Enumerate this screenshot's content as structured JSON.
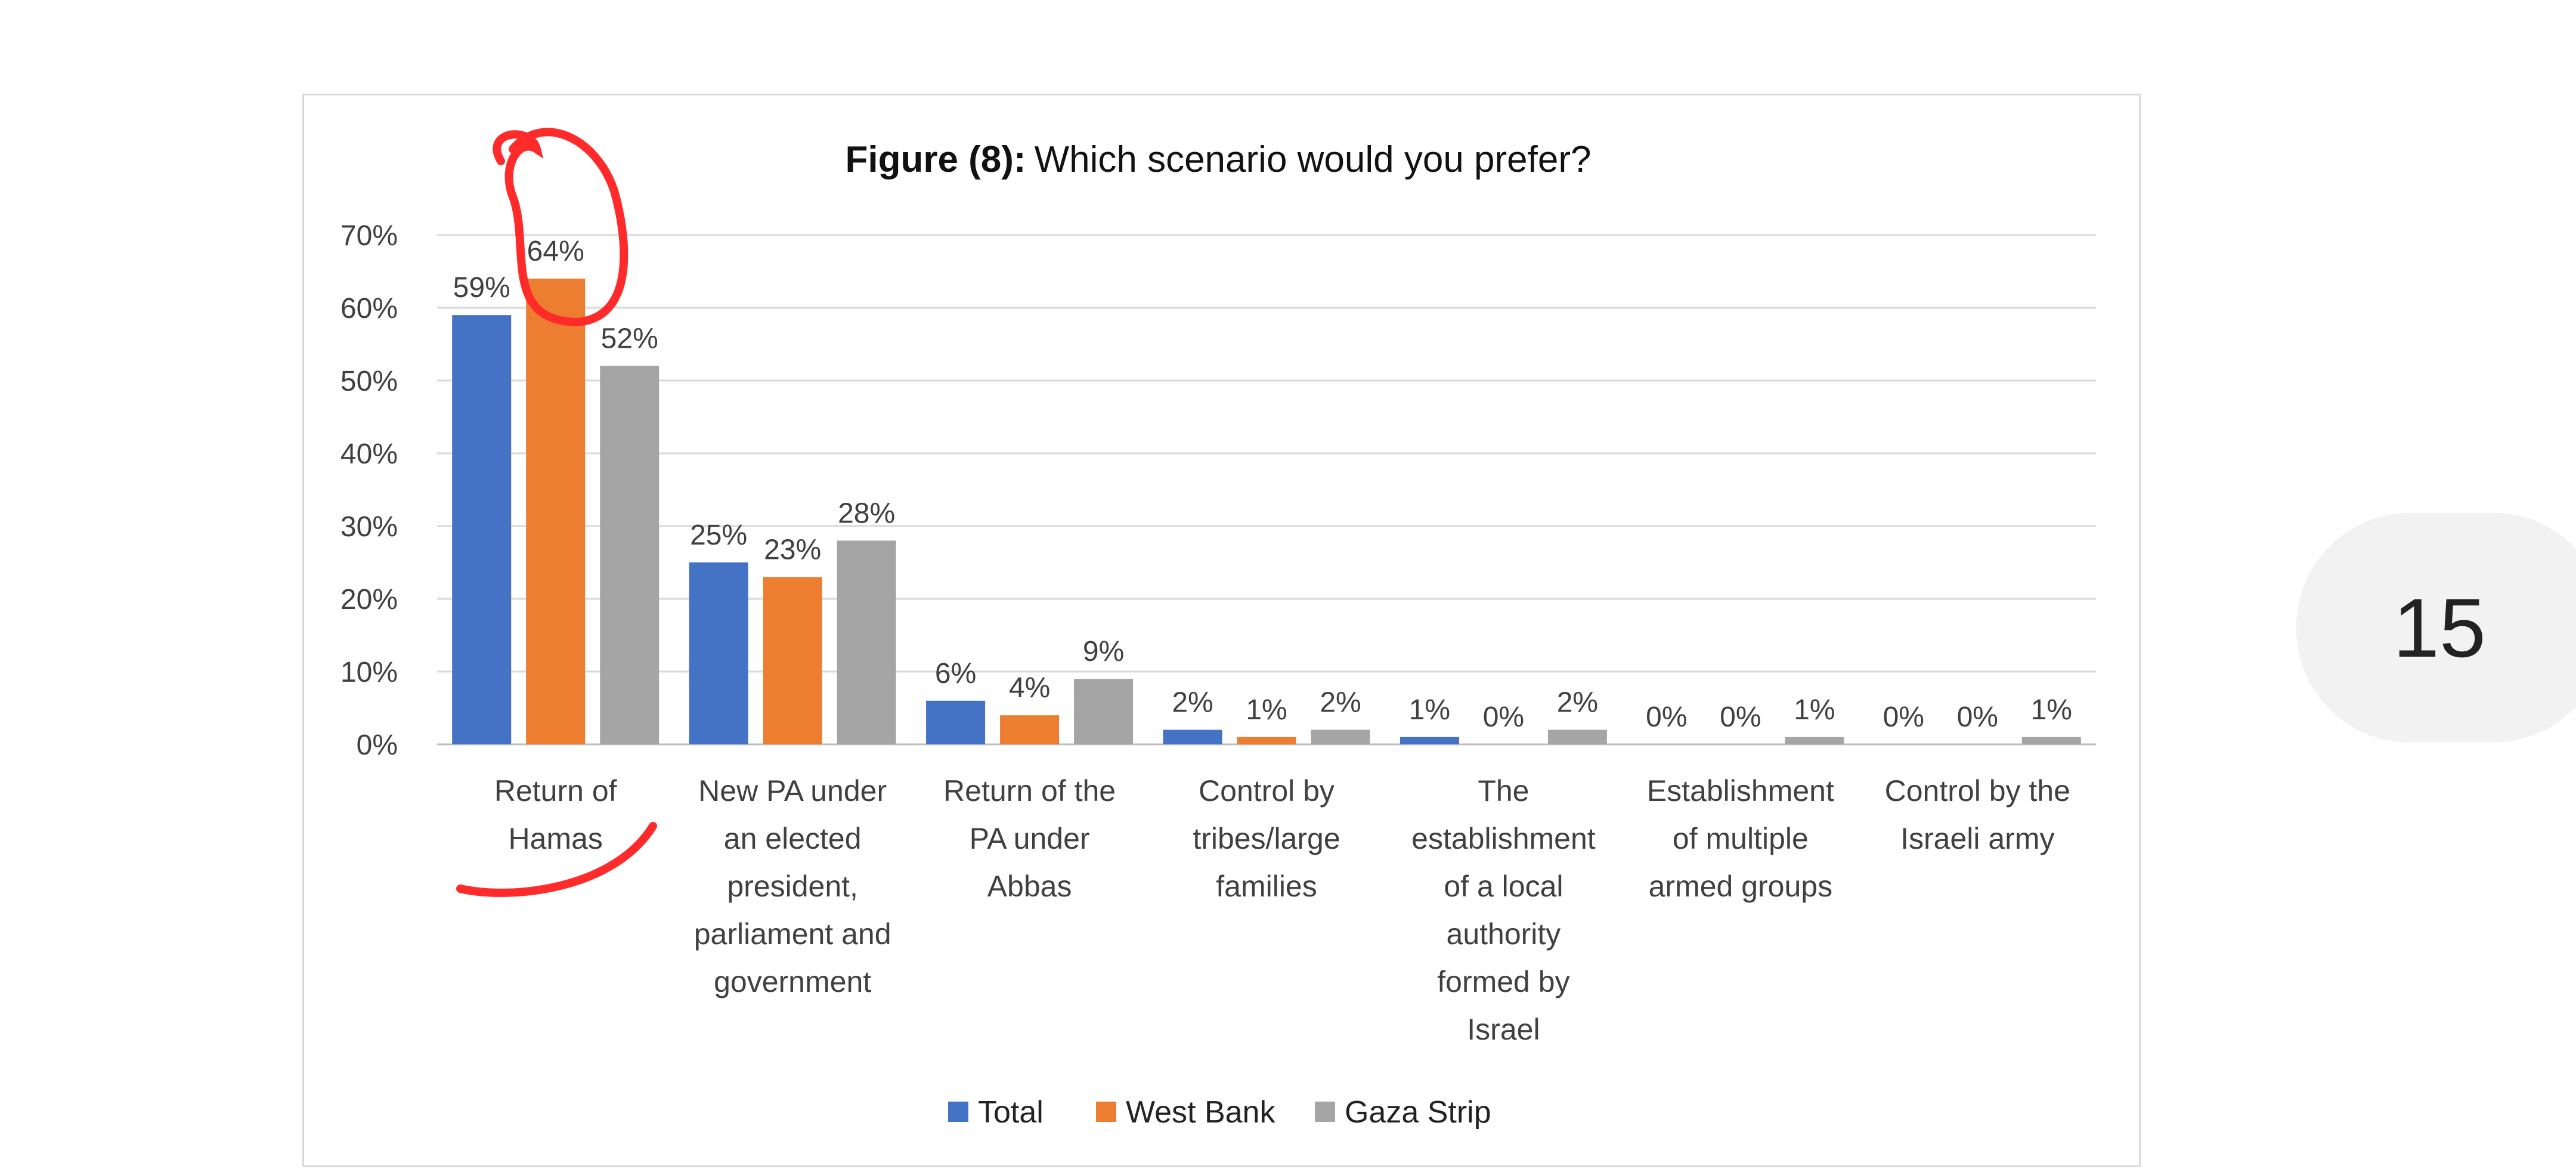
{
  "page_number": "15",
  "chart_data": {
    "type": "bar",
    "title_bold": "Figure (8):",
    "title": "Which scenario would you prefer?",
    "xlabel": "",
    "ylabel": "",
    "ylim": [
      0,
      70
    ],
    "yticks": [
      "0%",
      "10%",
      "20%",
      "30%",
      "40%",
      "50%",
      "60%",
      "70%"
    ],
    "grid": true,
    "legend_position": "bottom",
    "categories": [
      [
        "Return of",
        "Hamas"
      ],
      [
        "New PA under",
        "an elected",
        "president,",
        "parliament and",
        "government"
      ],
      [
        "Return of the",
        "PA under",
        "Abbas"
      ],
      [
        "Control by",
        "tribes/large",
        "families"
      ],
      [
        "The",
        "establishment",
        "of a local",
        "authority",
        "formed by",
        "Israel"
      ],
      [
        "Establishment",
        "of multiple",
        "armed groups"
      ],
      [
        "Control by the",
        "Israeli army"
      ]
    ],
    "series": [
      {
        "name": "Total",
        "color": "#4472c4",
        "values": [
          59,
          25,
          6,
          2,
          1,
          0,
          0
        ],
        "labels": [
          "59%",
          "25%",
          "6%",
          "2%",
          "1%",
          "0%",
          "0%"
        ]
      },
      {
        "name": "West Bank",
        "color": "#ed7d31",
        "values": [
          64,
          23,
          4,
          1,
          0,
          0,
          0
        ],
        "labels": [
          "64%",
          "23%",
          "4%",
          "1%",
          "0%",
          "0%",
          "0%"
        ]
      },
      {
        "name": "Gaza Strip",
        "color": "#a5a5a5",
        "values": [
          52,
          28,
          9,
          2,
          2,
          1,
          1
        ],
        "labels": [
          "52%",
          "28%",
          "9%",
          "2%",
          "2%",
          "1%",
          "1%"
        ]
      }
    ],
    "annotation_color": "#ff2a2a"
  }
}
